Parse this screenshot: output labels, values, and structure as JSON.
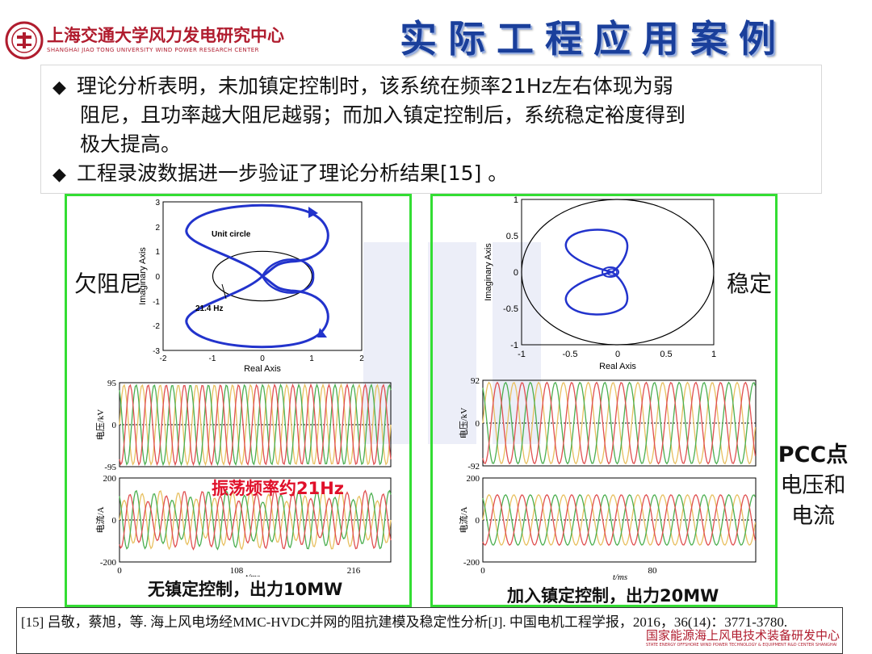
{
  "header": {
    "logo_cn": "上海交通大学风力发电研究中心",
    "logo_en": "SHANGHAI JIAO TONG UNIVERSITY WIND POWER RESEARCH CENTER",
    "title": "实际工程应用案例"
  },
  "bullets": [
    {
      "lines": [
        "理论分析表明，未加镇定控制时，该系统在频率21Hz左右体现为弱",
        "阻尼，且功率越大阻尼越弱；而加入镇定控制后，系统稳定裕度得到",
        "极大提高。"
      ]
    },
    {
      "lines": [
        "工程录波数据进一步验证了理论分析结果[15] 。"
      ]
    }
  ],
  "labels": {
    "underdamped": "欠阻尼",
    "stable": "稳定",
    "pcc_line1": "PCC点",
    "pcc_line2": "电压和",
    "pcc_line3": "电流",
    "osc_freq": "振荡频率约21Hz",
    "caption_left": "无镇定控制，出力10MW",
    "caption_right": "加入镇定控制，出力20MW"
  },
  "colors": {
    "title": "#1a3f9b",
    "panel_border": "#33dd33",
    "nyquist_curve": "#2233cc",
    "highlight": "#e0102a",
    "phase_a": "#e8c060",
    "phase_b": "#4caf50",
    "phase_c": "#e05050"
  },
  "chart_data": [
    {
      "type": "line",
      "chart": "nyquist-left",
      "xlabel": "Real Axis",
      "ylabel": "Imaginary Axis",
      "xlim": [
        -2,
        2
      ],
      "ylim": [
        -3,
        3
      ],
      "xticks": [
        "-2",
        "-1",
        "0",
        "1",
        "2"
      ],
      "yticks": [
        "3",
        "2",
        "1",
        "0",
        "-1",
        "-2",
        "-3"
      ],
      "annotations": [
        "Unit circle",
        "21.4 Hz"
      ]
    },
    {
      "type": "line",
      "chart": "nyquist-right",
      "xlabel": "Real Axis",
      "ylabel": "Imaginary Axis",
      "xlim": [
        -1,
        1
      ],
      "ylim": [
        -1,
        1
      ],
      "xticks": [
        "-1",
        "-0.5",
        "0",
        "0.5",
        "1"
      ],
      "yticks": [
        "1",
        "0.5",
        "0",
        "-0.5",
        "-1"
      ]
    },
    {
      "type": "line",
      "chart": "voltage-left",
      "ylabel": "电压/kV",
      "ylim": [
        -95,
        95
      ],
      "yticks": [
        "95",
        "0",
        "-95"
      ]
    },
    {
      "type": "line",
      "chart": "current-left",
      "xlabel": "t/ms",
      "ylabel": "电流/A",
      "ylim": [
        -200,
        200
      ],
      "yticks": [
        "200",
        "0",
        "-200"
      ],
      "xticks": [
        "0",
        "108",
        "216"
      ]
    },
    {
      "type": "line",
      "chart": "voltage-right",
      "ylabel": "电压/kV",
      "ylim": [
        -92,
        92
      ],
      "yticks": [
        "92",
        "0",
        "-92"
      ]
    },
    {
      "type": "line",
      "chart": "current-right",
      "xlabel": "t/ms",
      "ylabel": "电流/A",
      "ylim": [
        -200,
        200
      ],
      "yticks": [
        "200",
        "0",
        "-200"
      ],
      "xticks": [
        "0",
        "80"
      ]
    }
  ],
  "reference": {
    "text": "[15] 吕敬，蔡旭，等. 海上风电场经MMC-HVDC并网的阻抗建模及稳定性分析[J]. 中国电机工程学报，2016，36(14)：3771-3780."
  },
  "footer": {
    "logo_cn": "国家能源海上风电技术装备研发中心",
    "logo_en": "STATE ENERGY OFFSHORE WIND POWER TECHNOLOGY & EQUIPMENT R&D CENTER SHANGHAI"
  }
}
